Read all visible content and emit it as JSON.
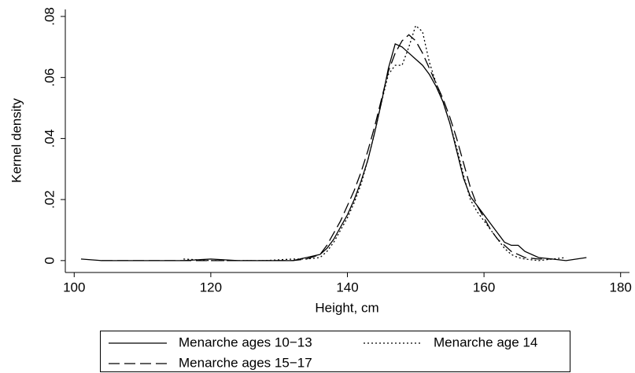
{
  "chart_data": {
    "type": "line",
    "x": [
      101,
      104,
      108,
      112,
      116,
      120,
      124,
      128,
      132,
      134,
      136,
      137,
      138,
      139,
      140,
      141,
      142,
      143,
      144,
      145,
      146,
      147,
      148,
      149,
      150,
      151,
      152,
      153,
      154,
      155,
      156,
      157,
      158,
      159,
      160,
      161,
      162,
      163,
      164,
      165,
      166,
      168,
      170,
      172,
      175
    ],
    "series": [
      {
        "name": "Menarche ages 10−13",
        "color": "#000000",
        "dash": "solid",
        "values": [
          0.0005,
          0,
          0,
          0,
          0,
          0.0005,
          0,
          0,
          0,
          0.001,
          0.002,
          0.004,
          0.007,
          0.011,
          0.015,
          0.02,
          0.026,
          0.033,
          0.042,
          0.052,
          0.063,
          0.071,
          0.07,
          0.068,
          0.066,
          0.064,
          0.061,
          0.057,
          0.052,
          0.045,
          0.036,
          0.027,
          0.021,
          0.018,
          0.015,
          0.012,
          0.009,
          0.006,
          0.005,
          0.005,
          0.003,
          0.001,
          0.0005,
          0,
          0.001
        ]
      },
      {
        "name": "Menarche age 14",
        "color": "#000000",
        "dash": "dotted",
        "values": [
          null,
          null,
          null,
          null,
          0.0005,
          0,
          0,
          0,
          0.0005,
          0.0005,
          0.001,
          0.003,
          0.006,
          0.01,
          0.014,
          0.019,
          0.025,
          0.033,
          0.042,
          0.052,
          0.061,
          0.064,
          0.064,
          0.07,
          0.077,
          0.075,
          0.065,
          0.058,
          0.052,
          0.045,
          0.037,
          0.028,
          0.02,
          0.016,
          0.013,
          0.01,
          0.007,
          0.004,
          0.002,
          0.001,
          0.0005,
          0,
          0.0005,
          0.001,
          null
        ]
      },
      {
        "name": "Menarche ages 15−17",
        "color": "#000000",
        "dash": "dashed",
        "values": [
          null,
          0,
          0,
          0,
          0,
          0,
          0,
          0,
          0,
          0.0005,
          0.002,
          0.005,
          0.009,
          0.013,
          0.018,
          0.023,
          0.029,
          0.036,
          0.044,
          0.053,
          0.062,
          0.068,
          0.072,
          0.074,
          0.072,
          0.068,
          0.063,
          0.058,
          0.053,
          0.047,
          0.04,
          0.032,
          0.024,
          0.018,
          0.014,
          0.01,
          0.007,
          0.005,
          0.003,
          0.002,
          0.001,
          0.0005,
          0.0005,
          null,
          null
        ]
      }
    ],
    "xlabel": "Height, cm",
    "ylabel": "Kernel density",
    "xlim": [
      98.7,
      181.3
    ],
    "xticks": [
      100,
      120,
      140,
      160,
      180
    ],
    "ylim": [
      -0.0039,
      0.0823
    ],
    "yticks": [
      0,
      {
        "value": 0.02,
        "label": ".02"
      },
      {
        "value": 0.04,
        "label": ".04"
      },
      {
        "value": 0.06,
        "label": ".06"
      },
      {
        "value": 0.08,
        "label": ".08"
      }
    ],
    "grid": false,
    "legend": "bottom"
  }
}
